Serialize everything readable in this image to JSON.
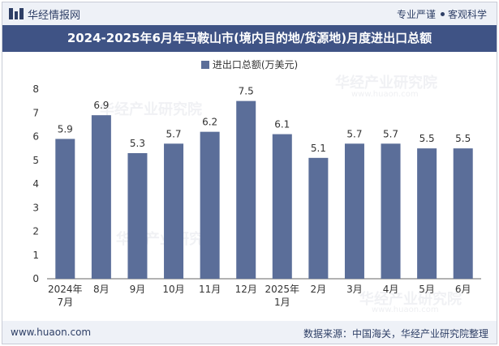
{
  "header": {
    "brand": "华经情报网",
    "tagline_left": "专业严谨",
    "tagline_right": "客观科学"
  },
  "chart_data": {
    "type": "bar",
    "title": "2024-2025年6月年马鞍山市(境内目的地/货源地)月度进出口总额",
    "legend": [
      "进出口总额(万美元)"
    ],
    "categories": [
      "2024年7月",
      "8月",
      "9月",
      "10月",
      "11月",
      "12月",
      "2025年1月",
      "2月",
      "3月",
      "4月",
      "5月",
      "6月"
    ],
    "series": [
      {
        "name": "进出口总额(万美元)",
        "values": [
          5.9,
          6.9,
          5.3,
          5.7,
          6.2,
          7.5,
          6.1,
          5.1,
          5.7,
          5.7,
          5.5,
          5.5
        ]
      }
    ],
    "ylim": [
      0,
      8
    ],
    "yticks": [
      0,
      1,
      2,
      3,
      4,
      5,
      6,
      7,
      8
    ],
    "bar_color": "#5b6e99",
    "legend_position": "top-center",
    "grid": false
  },
  "watermark": {
    "text": "华经产业研究院",
    "url": "www.huaon.com"
  },
  "footer": {
    "website": "www.huaon.com",
    "source": "数据来源：中国海关，华经产业研究院整理"
  }
}
